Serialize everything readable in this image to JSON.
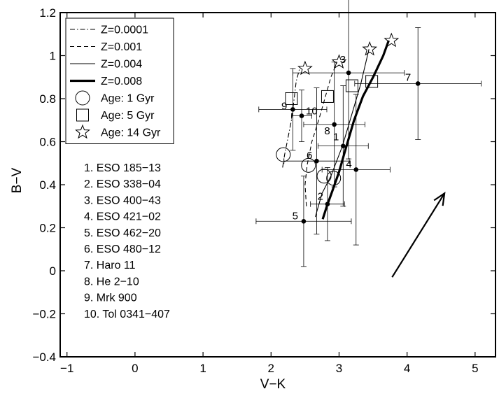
{
  "chart_data": {
    "type": "scatter",
    "xlabel": "V−K",
    "ylabel": "B−V",
    "xlim": [
      -1.1,
      5.3
    ],
    "ylim": [
      -0.4,
      1.2
    ],
    "xticks": [
      "−1",
      "0",
      "1",
      "2",
      "3",
      "4",
      "5"
    ],
    "xtick_values": [
      -1,
      0,
      1,
      2,
      3,
      4,
      5
    ],
    "yticks": [
      "−0.4",
      "−0.2",
      "0",
      "0.2",
      "0.4",
      "0.6",
      "0.8",
      "1",
      "1.2"
    ],
    "ytick_values": [
      -0.4,
      -0.2,
      0,
      0.2,
      0.4,
      0.6,
      0.8,
      1.0,
      1.2
    ],
    "legend": {
      "position": "top-left",
      "entries": [
        {
          "label": "Z=0.0001",
          "style": "dashdot"
        },
        {
          "label": "Z=0.001",
          "style": "dashed"
        },
        {
          "label": "Z=0.004",
          "style": "thin"
        },
        {
          "label": "Z=0.008",
          "style": "thick"
        },
        {
          "label": "Age: 1 Gyr",
          "style": "circle"
        },
        {
          "label": "Age: 5 Gyr",
          "style": "square"
        },
        {
          "label": "Age: 14 Gyr",
          "style": "star"
        }
      ]
    },
    "tracks": [
      {
        "name": "Z=0.0001",
        "style": "dashdot",
        "x": [
          2.17,
          2.2,
          2.25,
          2.3,
          2.34,
          2.37,
          2.42
        ],
        "y": [
          0.48,
          0.54,
          0.62,
          0.7,
          0.8,
          0.88,
          0.94
        ]
      },
      {
        "name": "Z=0.001",
        "style": "dashed",
        "x": [
          2.52,
          2.5,
          2.53,
          2.6,
          2.7,
          2.8,
          2.88,
          2.97
        ],
        "y": [
          0.3,
          0.4,
          0.49,
          0.6,
          0.7,
          0.81,
          0.9,
          0.97
        ]
      },
      {
        "name": "Z=0.004",
        "style": "thin",
        "x": [
          2.65,
          2.75,
          2.88,
          3.05,
          3.2,
          3.32,
          3.44
        ],
        "y": [
          0.25,
          0.36,
          0.44,
          0.58,
          0.74,
          0.87,
          1.03
        ]
      },
      {
        "name": "Z=0.008",
        "style": "thick",
        "x": [
          2.76,
          2.82,
          2.9,
          3.0,
          3.1,
          3.22,
          3.35,
          3.5,
          3.65,
          3.73
        ],
        "y": [
          0.24,
          0.3,
          0.37,
          0.46,
          0.57,
          0.7,
          0.81,
          0.9,
          1.0,
          1.07
        ]
      }
    ],
    "age_markers": [
      {
        "age": "1 Gyr",
        "marker": "circle",
        "x": [
          2.18,
          2.55,
          2.78,
          2.92
        ],
        "y": [
          0.54,
          0.49,
          0.44,
          0.43
        ]
      },
      {
        "age": "5 Gyr",
        "marker": "square",
        "x": [
          2.3,
          2.83,
          3.19,
          3.48
        ],
        "y": [
          0.8,
          0.81,
          0.86,
          0.88
        ]
      },
      {
        "age": "14 Gyr",
        "marker": "star",
        "x": [
          2.5,
          3.0,
          3.45,
          3.77
        ],
        "y": [
          0.94,
          0.97,
          1.03,
          1.07
        ]
      }
    ],
    "galaxies": [
      {
        "id": "1",
        "name": "ESO 185−13",
        "x": 3.06,
        "y": 0.58,
        "xerr": 0.37,
        "yerr": 0.28
      },
      {
        "id": "2",
        "name": "ESO 338−04",
        "x": 2.83,
        "y": 0.31,
        "xerr": 0.25,
        "yerr": 0.17
      },
      {
        "id": "3",
        "name": "ESO 400−43",
        "x": 3.14,
        "y": 0.92,
        "xerr": 0.82,
        "yerr": 0.4
      },
      {
        "id": "4",
        "name": "ESO 421−02",
        "x": 3.25,
        "y": 0.47,
        "xerr": 0.5,
        "yerr": 0.35
      },
      {
        "id": "5",
        "name": "ESO 462−20",
        "x": 2.48,
        "y": 0.23,
        "xerr": 0.7,
        "yerr": 0.21
      },
      {
        "id": "6",
        "name": "ESO 480−12",
        "x": 2.67,
        "y": 0.51,
        "xerr": 0.48,
        "yerr": 0.34
      },
      {
        "id": "7",
        "name": "Haro 11",
        "x": 4.16,
        "y": 0.87,
        "xerr": 0.93,
        "yerr": 0.26
      },
      {
        "id": "8",
        "name": "He 2−10",
        "x": 2.93,
        "y": 0.68,
        "xerr": 0.45,
        "yerr": 0.29
      },
      {
        "id": "9",
        "name": "Mrk 900",
        "x": 2.32,
        "y": 0.75,
        "xerr": 0.5,
        "yerr": 0.19
      },
      {
        "id": "10",
        "name": "Tol 0341−407",
        "x": 2.45,
        "y": 0.72,
        "xerr": 0.15,
        "yerr": 0.12
      }
    ],
    "galaxy_list": [
      "1.   ESO 185−13",
      "2.   ESO 338−04",
      "3.   ESO 400−43",
      "4.   ESO 421−02",
      "5.   ESO 462−20",
      "6.   ESO 480−12",
      "7.   Haro 11",
      "8.   He 2−10",
      "9.   Mrk 900",
      "10.  Tol 0341−407"
    ],
    "vector": {
      "x": [
        3.78,
        4.55
      ],
      "y": [
        -0.03,
        0.36
      ]
    },
    "grid": false
  }
}
